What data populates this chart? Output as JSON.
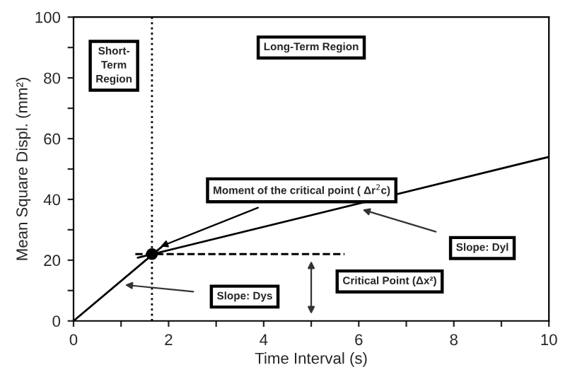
{
  "chart_data": {
    "type": "line",
    "xlabel": "Time Interval (s)",
    "ylabel": "Mean Square Displ. (mm²)",
    "xlim": [
      0,
      10
    ],
    "ylim": [
      0,
      100
    ],
    "xticks": [
      0,
      {
        "value": 1,
        "label": null
      },
      2,
      {
        "value": 3,
        "label": null
      },
      4,
      {
        "value": 5,
        "label": null
      },
      6,
      {
        "value": 7,
        "label": null
      },
      8,
      {
        "value": 9,
        "label": null
      },
      10
    ],
    "yticks": [
      0,
      {
        "value": 10,
        "label": null
      },
      20,
      {
        "value": 30,
        "label": null
      },
      40,
      {
        "value": 50,
        "label": null
      },
      60,
      {
        "value": 70,
        "label": null
      },
      80,
      {
        "value": 90,
        "label": null
      },
      100
    ],
    "grid": false,
    "legend": false,
    "series": [
      {
        "color": "#000000",
        "x": [
          0,
          1.9
        ],
        "values": [
          0,
          25
        ]
      },
      {
        "color": "#000000",
        "x": [
          1.35,
          10
        ],
        "values": [
          20.8,
          54
        ]
      },
      {
        "type": "line",
        "color": "#000000",
        "line_style": "dashed",
        "x": [
          1.3,
          5.7
        ],
        "values": [
          22,
          22
        ]
      },
      {
        "type": "scatter",
        "color": "#000000",
        "marker": "circle",
        "x": [
          1.65
        ],
        "values": [
          22
        ]
      }
    ],
    "ref_lines": [
      {
        "axis": "x",
        "value": 1.65,
        "color": "#000000",
        "line_style": "dotted"
      }
    ],
    "annotations": [
      "Short-\nTerm\nRegion",
      "Long-Term Region",
      {
        "text": "Moment of the critical point ( Δr$^{2}$c)",
        "x": 1.75,
        "y": 24
      },
      "Slope: Dyl",
      "Slope: Dys",
      "Critical Point (Δx²)"
    ]
  }
}
